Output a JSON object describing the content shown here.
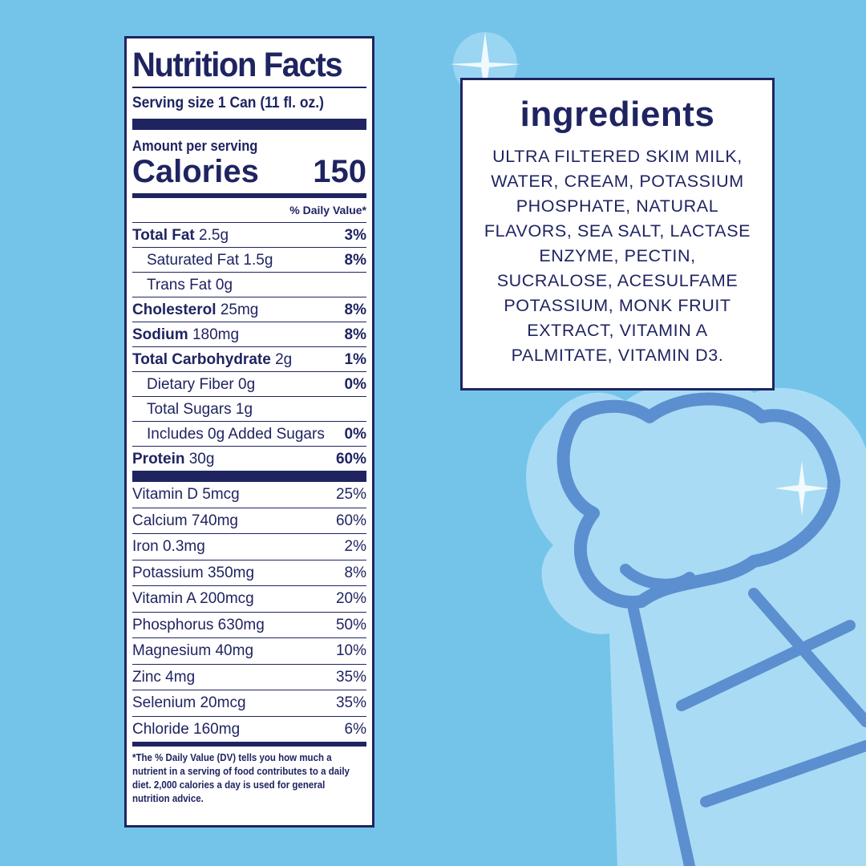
{
  "colors": {
    "background": "#74c4ea",
    "navy": "#1f2461",
    "cone_light": "#a9dcf4",
    "cone_line": "#5b8fd0"
  },
  "nutrition": {
    "title": "Nutrition Facts",
    "serving": "Serving size  1 Can (11 fl. oz.)",
    "amount_label": "Amount per serving",
    "calories_label": "Calories",
    "calories": "150",
    "dv_header": "% Daily Value*",
    "rows": [
      {
        "name": "Total Fat",
        "amount": "2.5g",
        "dv": "3%",
        "bold": true
      },
      {
        "name": "Saturated Fat",
        "amount": "1.5g",
        "dv": "8%",
        "indent": true
      },
      {
        "name": "Trans Fat",
        "amount": "0g",
        "dv": "",
        "indent": true
      },
      {
        "name": "Cholesterol",
        "amount": "25mg",
        "dv": "8%",
        "bold": true
      },
      {
        "name": "Sodium",
        "amount": "180mg",
        "dv": "8%",
        "bold": true
      },
      {
        "name": "Total Carbohydrate",
        "amount": "2g",
        "dv": "1%",
        "bold": true
      },
      {
        "name": "Dietary Fiber",
        "amount": "0g",
        "dv": "0%",
        "indent": true
      },
      {
        "name": "Total Sugars",
        "amount": "1g",
        "dv": "",
        "indent": true
      },
      {
        "name": "Includes 0g Added Sugars",
        "amount": "",
        "dv": "0%",
        "indent": true
      },
      {
        "name": "Protein",
        "amount": "30g",
        "dv": "60%",
        "bold": true
      }
    ],
    "vitamins": [
      {
        "name": "Vitamin D 5mcg",
        "dv": "25%"
      },
      {
        "name": "Calcium 740mg",
        "dv": "60%"
      },
      {
        "name": "Iron 0.3mg",
        "dv": "2%"
      },
      {
        "name": "Potassium 350mg",
        "dv": "8%"
      },
      {
        "name": "Vitamin A 200mcg",
        "dv": "20%"
      },
      {
        "name": "Phosphorus 630mg",
        "dv": "50%"
      },
      {
        "name": "Magnesium 40mg",
        "dv": "10%"
      },
      {
        "name": "Zinc 4mg",
        "dv": "35%"
      },
      {
        "name": "Selenium 20mcg",
        "dv": "35%"
      },
      {
        "name": "Chloride 160mg",
        "dv": "6%"
      }
    ],
    "footnote": "*The % Daily Value (DV) tells you how much a nutrient in a serving of food contributes to a daily diet. 2,000 calories a day is used for general nutrition advice."
  },
  "ingredients": {
    "title": "ingredients",
    "text": "ULTRA FILTERED SKIM MILK, WATER, CREAM, POTASSIUM PHOSPHATE, NATURAL FLAVORS, SEA SALT, LACTASE ENZYME, PECTIN, SUCRALOSE, ACESULFAME POTASSIUM, MONK FRUIT EXTRACT, VITAMIN A PALMITATE, VITAMIN D3."
  }
}
